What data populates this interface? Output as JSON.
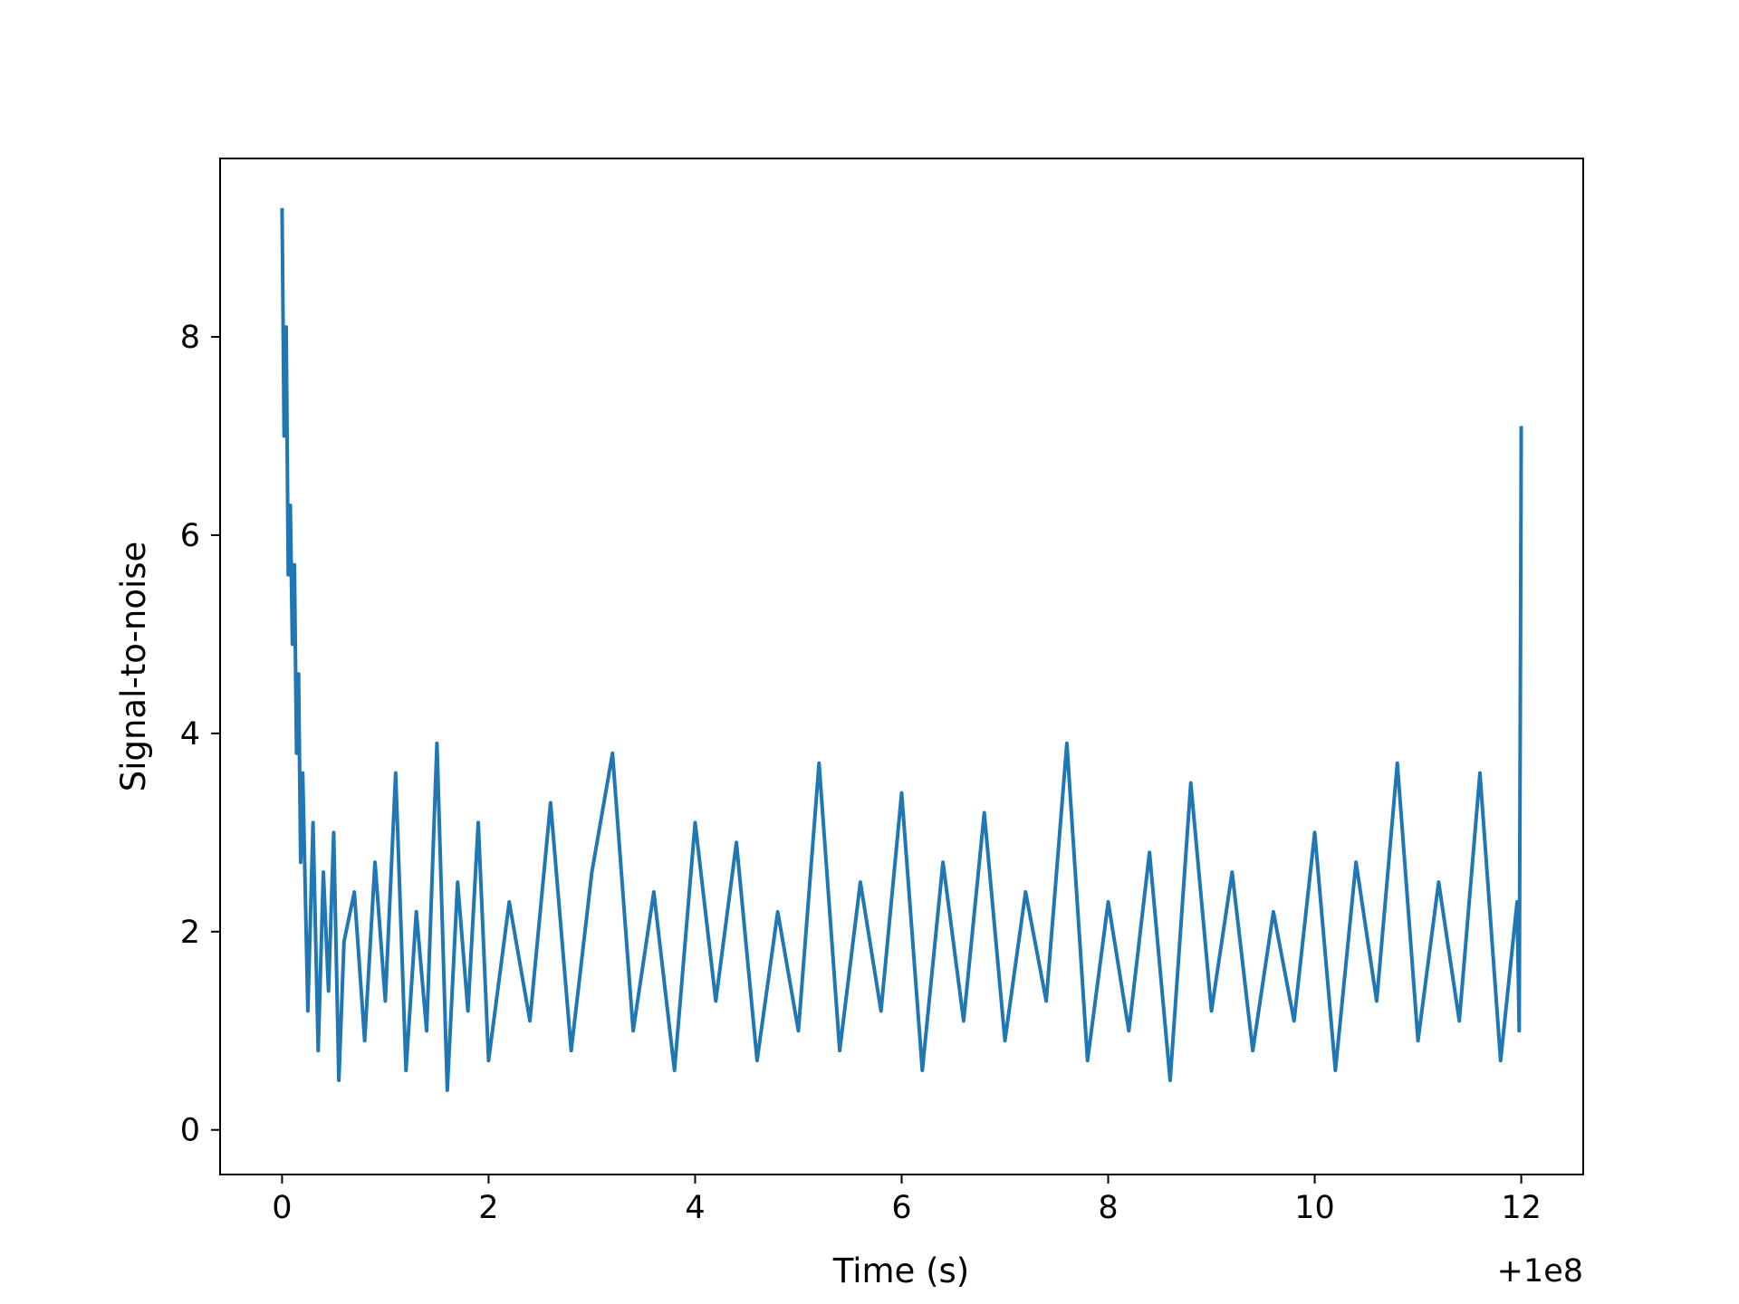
{
  "chart_data": {
    "type": "line",
    "title": "",
    "xlabel": "Time (s)",
    "ylabel": "Signal-to-noise",
    "x_offset_label": "+1e8",
    "xlim": [
      -0.6,
      12.6
    ],
    "ylim": [
      -0.45,
      9.8
    ],
    "xticks": [
      0,
      2,
      4,
      6,
      8,
      10,
      12
    ],
    "xtick_labels": [
      "0",
      "2",
      "4",
      "6",
      "8",
      "10",
      "12"
    ],
    "yticks": [
      0,
      2,
      4,
      6,
      8
    ],
    "ytick_labels": [
      "0",
      "2",
      "4",
      "6",
      "8"
    ],
    "grid": false,
    "legend": "none",
    "colors": {
      "series": "#1f77b4",
      "axes": "#000000",
      "background": "#ffffff"
    },
    "series": [
      {
        "x": [
          0.0,
          0.02,
          0.04,
          0.06,
          0.08,
          0.1,
          0.12,
          0.14,
          0.16,
          0.18,
          0.2,
          0.25,
          0.3,
          0.35,
          0.4,
          0.45,
          0.5,
          0.55,
          0.6,
          0.7,
          0.8,
          0.9,
          1.0,
          1.1,
          1.2,
          1.3,
          1.4,
          1.5,
          1.6,
          1.7,
          1.8,
          1.9,
          2.0,
          2.2,
          2.4,
          2.6,
          2.8,
          3.0,
          3.2,
          3.4,
          3.6,
          3.8,
          4.0,
          4.2,
          4.4,
          4.6,
          4.8,
          5.0,
          5.2,
          5.4,
          5.6,
          5.8,
          6.0,
          6.2,
          6.4,
          6.6,
          6.8,
          7.0,
          7.2,
          7.4,
          7.6,
          7.8,
          8.0,
          8.2,
          8.4,
          8.6,
          8.8,
          9.0,
          9.2,
          9.4,
          9.6,
          9.8,
          10.0,
          10.2,
          10.4,
          10.6,
          10.8,
          11.0,
          11.2,
          11.4,
          11.6,
          11.8,
          11.96,
          11.98,
          12.0
        ],
        "y": [
          9.3,
          7.0,
          8.1,
          5.6,
          6.3,
          4.9,
          5.7,
          3.8,
          4.6,
          2.7,
          3.6,
          1.2,
          3.1,
          0.8,
          2.6,
          1.4,
          3.0,
          0.5,
          1.9,
          2.4,
          0.9,
          2.7,
          1.3,
          3.6,
          0.6,
          2.2,
          1.0,
          3.9,
          0.4,
          2.5,
          1.2,
          3.1,
          0.7,
          2.3,
          1.1,
          3.3,
          0.8,
          2.6,
          3.8,
          1.0,
          2.4,
          0.6,
          3.1,
          1.3,
          2.9,
          0.7,
          2.2,
          1.0,
          3.7,
          0.8,
          2.5,
          1.2,
          3.4,
          0.6,
          2.7,
          1.1,
          3.2,
          0.9,
          2.4,
          1.3,
          3.9,
          0.7,
          2.3,
          1.0,
          2.8,
          0.5,
          3.5,
          1.2,
          2.6,
          0.8,
          2.2,
          1.1,
          3.0,
          0.6,
          2.7,
          1.3,
          3.7,
          0.9,
          2.5,
          1.1,
          3.6,
          0.7,
          2.3,
          1.0,
          7.1
        ]
      }
    ]
  }
}
